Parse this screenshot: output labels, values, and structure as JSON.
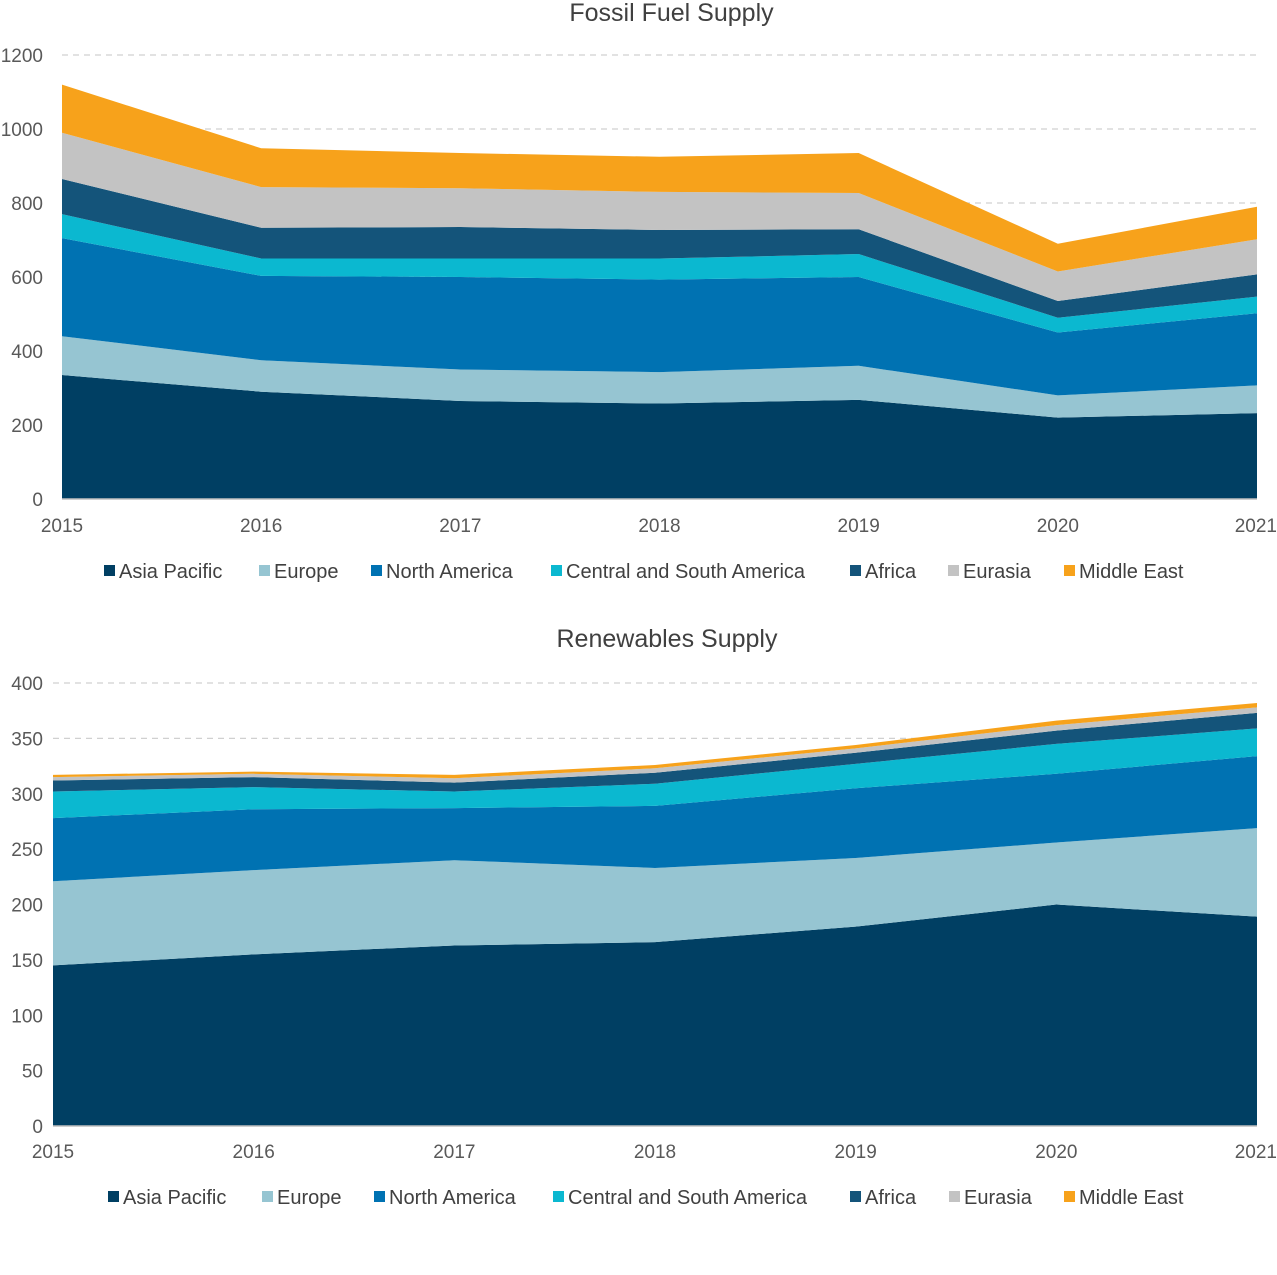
{
  "chart_data": [
    {
      "type": "area",
      "stacked": true,
      "title": "Fossil Fuel Supply",
      "xlabel": "",
      "ylabel": "",
      "x": [
        "2015",
        "2016",
        "2017",
        "2018",
        "2019",
        "2020",
        "2021"
      ],
      "ylim": [
        0,
        1200
      ],
      "yticks": [
        0,
        200,
        400,
        600,
        800,
        1000,
        1200
      ],
      "grid": true,
      "legend_position": "bottom",
      "series": [
        {
          "name": "Asia Pacific",
          "color": "#003f63",
          "values": [
            335,
            290,
            265,
            258,
            268,
            220,
            232
          ]
        },
        {
          "name": "Europe",
          "color": "#96c5d2",
          "values": [
            105,
            85,
            85,
            85,
            92,
            60,
            75
          ]
        },
        {
          "name": "North America",
          "color": "#0072b2",
          "values": [
            265,
            228,
            250,
            250,
            240,
            170,
            195
          ]
        },
        {
          "name": "Central and South America",
          "color": "#0bb8d0",
          "values": [
            65,
            47,
            50,
            57,
            62,
            40,
            45
          ]
        },
        {
          "name": "Africa",
          "color": "#14547a",
          "values": [
            95,
            83,
            85,
            77,
            67,
            45,
            60
          ]
        },
        {
          "name": "Eurasia",
          "color": "#c3c3c3",
          "values": [
            125,
            110,
            105,
            103,
            98,
            80,
            95
          ]
        },
        {
          "name": "Middle East",
          "color": "#f7a21b",
          "values": [
            130,
            105,
            95,
            95,
            108,
            75,
            88
          ]
        }
      ]
    },
    {
      "type": "area",
      "stacked": true,
      "title": "Renewables Supply",
      "xlabel": "",
      "ylabel": "",
      "x": [
        "2015",
        "2016",
        "2017",
        "2018",
        "2019",
        "2020",
        "2021"
      ],
      "ylim": [
        0,
        400
      ],
      "yticks": [
        0,
        50,
        100,
        150,
        200,
        250,
        300,
        350,
        400
      ],
      "grid": true,
      "legend_position": "bottom",
      "series": [
        {
          "name": "Asia Pacific",
          "color": "#003f63",
          "values": [
            145,
            155,
            163,
            166,
            180,
            200,
            189
          ]
        },
        {
          "name": "Europe",
          "color": "#96c5d2",
          "values": [
            76,
            76,
            77,
            67,
            62,
            56,
            80
          ]
        },
        {
          "name": "North America",
          "color": "#0072b2",
          "values": [
            57,
            55,
            47,
            56,
            63,
            62,
            65
          ]
        },
        {
          "name": "Central and South America",
          "color": "#0bb8d0",
          "values": [
            24,
            20,
            15,
            20,
            22,
            27,
            25
          ]
        },
        {
          "name": "Africa",
          "color": "#14547a",
          "values": [
            10,
            9,
            8,
            10,
            10,
            12,
            14
          ]
        },
        {
          "name": "Eurasia",
          "color": "#c3c3c3",
          "values": [
            3,
            3,
            4,
            4,
            4,
            5,
            5
          ]
        },
        {
          "name": "Middle East",
          "color": "#f7a21b",
          "values": [
            2,
            2,
            3,
            3,
            3,
            4,
            4
          ]
        }
      ]
    }
  ]
}
